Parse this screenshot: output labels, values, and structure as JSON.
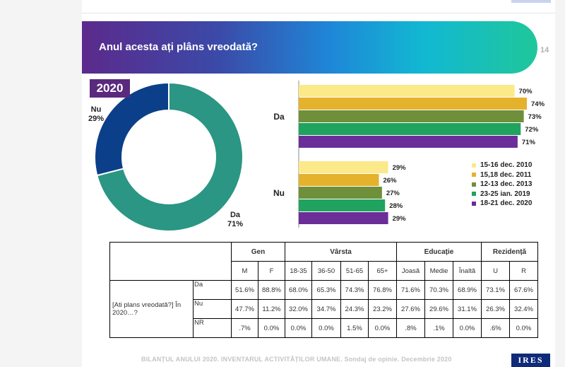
{
  "header": {
    "title": "Anul acesta ați plâns vreodată?",
    "page_number": "14"
  },
  "year_label": "2020",
  "donut": {
    "slices": [
      {
        "label": "Da",
        "pct_label": "71%",
        "value": 71,
        "color": "#2a9683"
      },
      {
        "label": "Nu",
        "pct_label": "29%",
        "value": 29,
        "color": "#0b3f8a"
      }
    ]
  },
  "chart_data": {
    "type": "bar",
    "orientation": "horizontal",
    "categories": [
      "Da",
      "Nu"
    ],
    "series": [
      {
        "name": "15-16 dec. 2010",
        "color": "#fbe98a",
        "values": [
          70,
          29
        ],
        "labels": [
          "70%",
          "29%"
        ]
      },
      {
        "name": "15,18 dec. 2011",
        "color": "#e4b22d",
        "values": [
          74,
          26
        ],
        "labels": [
          "74%",
          "26%"
        ]
      },
      {
        "name": "12-13 dec. 2013",
        "color": "#6f8f3a",
        "values": [
          73,
          27
        ],
        "labels": [
          "73%",
          "27%"
        ]
      },
      {
        "name": "23-25 ian. 2019",
        "color": "#1fa35e",
        "values": [
          72,
          28
        ],
        "labels": [
          "72%",
          "28%"
        ]
      },
      {
        "name": "18-21 dec. 2020",
        "color": "#6b2d98",
        "values": [
          71,
          29
        ],
        "labels": [
          "71%",
          "29%"
        ]
      }
    ],
    "xlim": [
      0,
      100
    ],
    "legend": "bottom-right"
  },
  "table": {
    "group_headers": [
      "Gen",
      "Vârsta",
      "Educație",
      "Rezidență"
    ],
    "sub_headers": [
      "M",
      "F",
      "18-35",
      "36-50",
      "51-65",
      "65+",
      "Joasă",
      "Medie",
      "Înaltă",
      "U",
      "R"
    ],
    "question": "[Ati plans vreodată?] În 2020…?",
    "rows": [
      {
        "answer": "Da",
        "values": [
          "51.6%",
          "88.8%",
          "68.0%",
          "65.3%",
          "74.3%",
          "76.8%",
          "71.6%",
          "70.3%",
          "68.9%",
          "73.1%",
          "67.6%"
        ]
      },
      {
        "answer": "Nu",
        "values": [
          "47.7%",
          "11.2%",
          "32.0%",
          "34.7%",
          "24.3%",
          "23.2%",
          "27.6%",
          "29.6%",
          "31.1%",
          "26.3%",
          "32.4%"
        ]
      },
      {
        "answer": "NR",
        "values": [
          ".7%",
          "0.0%",
          "0.0%",
          "0.0%",
          "1.5%",
          "0.0%",
          ".8%",
          ".1%",
          "0.0%",
          ".6%",
          "0.0%"
        ]
      }
    ]
  },
  "footer": {
    "text": "BILANȚUL ANULUI 2020. INVENTARUL ACTIVITĂȚILOR UMANE. Sondaj de opinie. Decembrie 2020",
    "logo": "IRES"
  }
}
